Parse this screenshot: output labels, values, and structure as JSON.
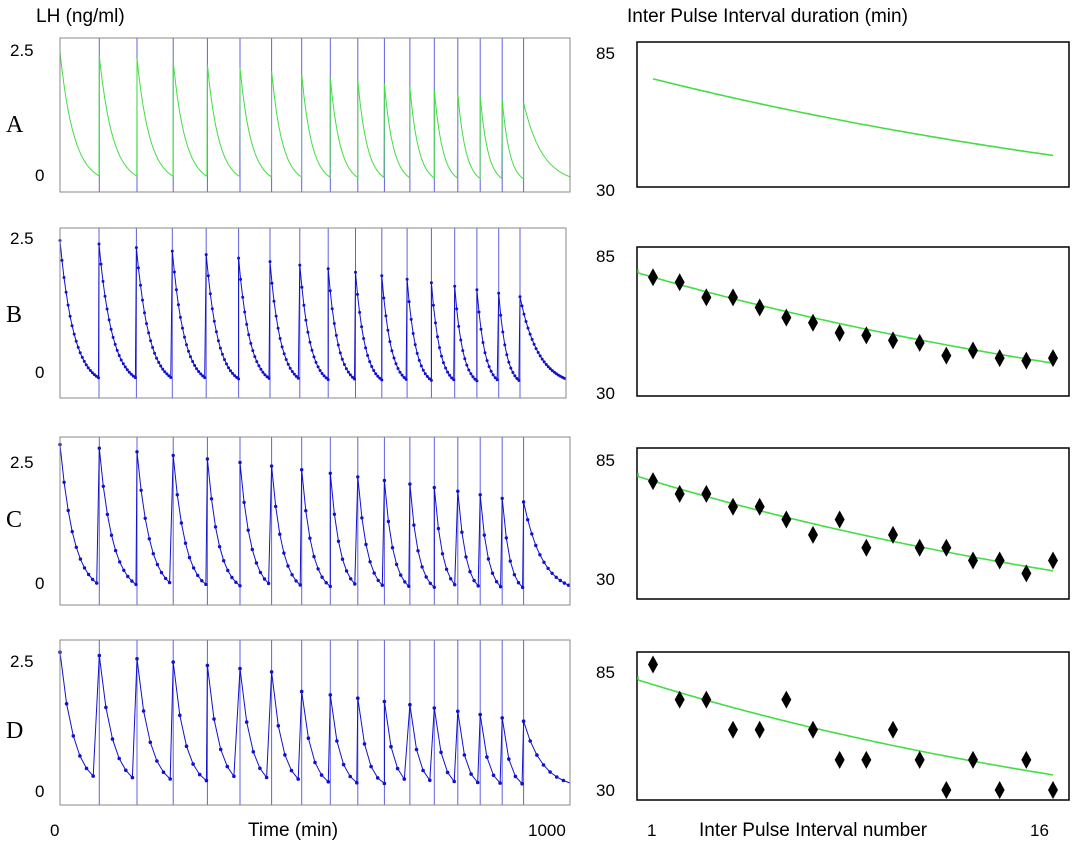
{
  "headers": {
    "left": "LH (ng/ml)",
    "right": "Inter Pulse Interval duration (min)"
  },
  "footer": {
    "x_left_start": "0",
    "x_left_end": "1000",
    "x_left_label": "Time (min)",
    "x_right_start": "1",
    "x_right_end": "16",
    "x_right_label": "Inter Pulse Interval number"
  },
  "colors": {
    "model_curve": "#44dd44",
    "data_blue": "#1010d0",
    "pulse_line": "#6060e0",
    "marker": "#000000"
  },
  "chart_data": [
    {
      "panel": "A",
      "type": "line",
      "title": "LH (ng/ml)",
      "xlabel": "Time (min)",
      "ylabel": "",
      "xlim": [
        0,
        1000
      ],
      "yticks": [
        "2.5",
        "0"
      ],
      "style": "model",
      "pulse_times": [
        0,
        77,
        151,
        222,
        289,
        353,
        415,
        474,
        530,
        584,
        636,
        686,
        734,
        780,
        824,
        867,
        909
      ],
      "peak": 2.5,
      "trough": 0.05,
      "series": []
    },
    {
      "panel": "B",
      "type": "line",
      "xlim": [
        0,
        1000
      ],
      "yticks": [
        "2.5",
        "0"
      ],
      "style": "dense",
      "series": []
    },
    {
      "panel": "C",
      "type": "line",
      "xlim": [
        0,
        1000
      ],
      "yticks": [
        "2.5",
        "0"
      ],
      "style": "medium",
      "series": []
    },
    {
      "panel": "D",
      "type": "line",
      "xlim": [
        0,
        1000
      ],
      "yticks": [
        "2.5",
        "0"
      ],
      "style": "sparse",
      "series": []
    },
    {
      "panel": "A-right",
      "type": "line",
      "title": "Inter Pulse Interval duration (min)",
      "xlabel": "Inter Pulse Interval number",
      "xlim": [
        1,
        16
      ],
      "ylim": [
        30,
        85
      ],
      "yticks": [
        "85",
        "30"
      ],
      "curve": [
        {
          "x": 1,
          "y": 78
        },
        {
          "x": 16,
          "y": 44
        }
      ],
      "points": []
    },
    {
      "panel": "B-right",
      "type": "scatter",
      "xlim": [
        1,
        16
      ],
      "ylim": [
        30,
        85
      ],
      "yticks": [
        "85",
        "30"
      ],
      "curve": [
        {
          "x": 1,
          "y": 77
        },
        {
          "x": 16,
          "y": 43
        }
      ],
      "points": [
        {
          "x": 1,
          "y": 77
        },
        {
          "x": 2,
          "y": 75
        },
        {
          "x": 3,
          "y": 69
        },
        {
          "x": 4,
          "y": 69
        },
        {
          "x": 5,
          "y": 65
        },
        {
          "x": 6,
          "y": 61
        },
        {
          "x": 7,
          "y": 59
        },
        {
          "x": 8,
          "y": 55
        },
        {
          "x": 9,
          "y": 54
        },
        {
          "x": 10,
          "y": 52
        },
        {
          "x": 11,
          "y": 51
        },
        {
          "x": 12,
          "y": 46
        },
        {
          "x": 13,
          "y": 48
        },
        {
          "x": 14,
          "y": 45
        },
        {
          "x": 15,
          "y": 44
        },
        {
          "x": 16,
          "y": 45
        }
      ]
    },
    {
      "panel": "C-right",
      "type": "scatter",
      "xlim": [
        1,
        16
      ],
      "ylim": [
        30,
        85
      ],
      "yticks": [
        "85",
        "30"
      ],
      "curve": [
        {
          "x": 1,
          "y": 76
        },
        {
          "x": 16,
          "y": 41
        }
      ],
      "points": [
        {
          "x": 1,
          "y": 76
        },
        {
          "x": 2,
          "y": 71
        },
        {
          "x": 3,
          "y": 71
        },
        {
          "x": 4,
          "y": 66
        },
        {
          "x": 5,
          "y": 66
        },
        {
          "x": 6,
          "y": 61
        },
        {
          "x": 7,
          "y": 55
        },
        {
          "x": 8,
          "y": 61
        },
        {
          "x": 9,
          "y": 50
        },
        {
          "x": 10,
          "y": 55
        },
        {
          "x": 11,
          "y": 50
        },
        {
          "x": 12,
          "y": 50
        },
        {
          "x": 13,
          "y": 45
        },
        {
          "x": 14,
          "y": 45
        },
        {
          "x": 15,
          "y": 40
        },
        {
          "x": 16,
          "y": 45
        }
      ]
    },
    {
      "panel": "D-right",
      "type": "scatter",
      "xlim": [
        1,
        16
      ],
      "ylim": [
        30,
        85
      ],
      "yticks": [
        "85",
        "30"
      ],
      "curve": [
        {
          "x": 1,
          "y": 76
        },
        {
          "x": 16,
          "y": 40
        }
      ],
      "points": [
        {
          "x": 1,
          "y": 84
        },
        {
          "x": 2,
          "y": 70
        },
        {
          "x": 3,
          "y": 70
        },
        {
          "x": 4,
          "y": 58
        },
        {
          "x": 5,
          "y": 58
        },
        {
          "x": 6,
          "y": 70
        },
        {
          "x": 7,
          "y": 58
        },
        {
          "x": 8,
          "y": 46
        },
        {
          "x": 9,
          "y": 46
        },
        {
          "x": 10,
          "y": 58
        },
        {
          "x": 11,
          "y": 46
        },
        {
          "x": 12,
          "y": 34
        },
        {
          "x": 13,
          "y": 46
        },
        {
          "x": 14,
          "y": 34
        },
        {
          "x": 15,
          "y": 46
        },
        {
          "x": 16,
          "y": 34
        }
      ]
    }
  ]
}
